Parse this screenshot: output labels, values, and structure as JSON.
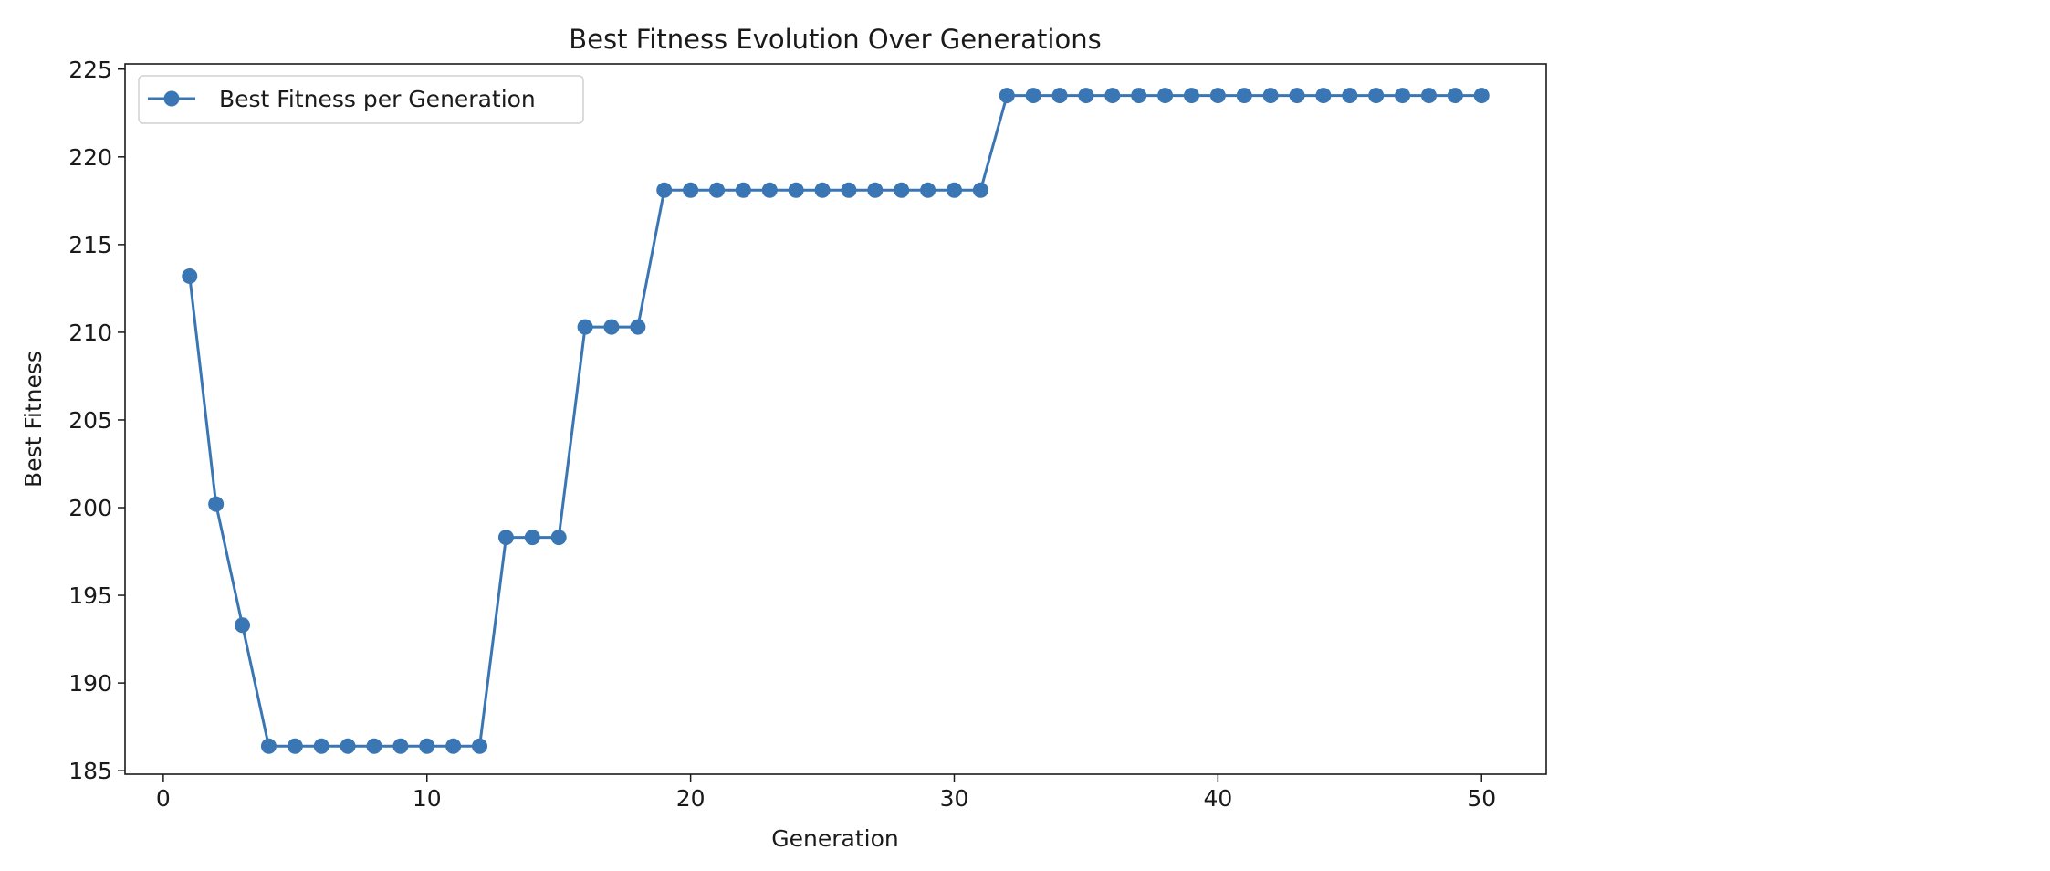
{
  "chart_data": {
    "type": "line",
    "title": "Best Fitness Evolution Over Generations",
    "xlabel": "Generation",
    "ylabel": "Best Fitness",
    "xlim": [
      -1.45,
      52.45
    ],
    "ylim": [
      184.8,
      225.3
    ],
    "xticks": [
      0,
      10,
      20,
      30,
      40,
      50
    ],
    "yticks": [
      185,
      190,
      195,
      200,
      205,
      210,
      215,
      220,
      225
    ],
    "grid": false,
    "legend_position": "upper-left",
    "series": [
      {
        "name": "Best Fitness per Generation",
        "color": "#3a76b4",
        "marker": "circle",
        "x": [
          1,
          2,
          3,
          4,
          5,
          6,
          7,
          8,
          9,
          10,
          11,
          12,
          13,
          14,
          15,
          16,
          17,
          18,
          19,
          20,
          21,
          22,
          23,
          24,
          25,
          26,
          27,
          28,
          29,
          30,
          31,
          32,
          33,
          34,
          35,
          36,
          37,
          38,
          39,
          40,
          41,
          42,
          43,
          44,
          45,
          46,
          47,
          48,
          49,
          50
        ],
        "y": [
          213.2,
          200.2,
          193.3,
          186.4,
          186.4,
          186.4,
          186.4,
          186.4,
          186.4,
          186.4,
          186.4,
          186.4,
          198.3,
          198.3,
          198.3,
          210.3,
          210.3,
          210.3,
          218.1,
          218.1,
          218.1,
          218.1,
          218.1,
          218.1,
          218.1,
          218.1,
          218.1,
          218.1,
          218.1,
          218.1,
          218.1,
          223.5,
          223.5,
          223.5,
          223.5,
          223.5,
          223.5,
          223.5,
          223.5,
          223.5,
          223.5,
          223.5,
          223.5,
          223.5,
          223.5,
          223.5,
          223.5,
          223.5,
          223.5,
          223.5
        ]
      }
    ]
  }
}
